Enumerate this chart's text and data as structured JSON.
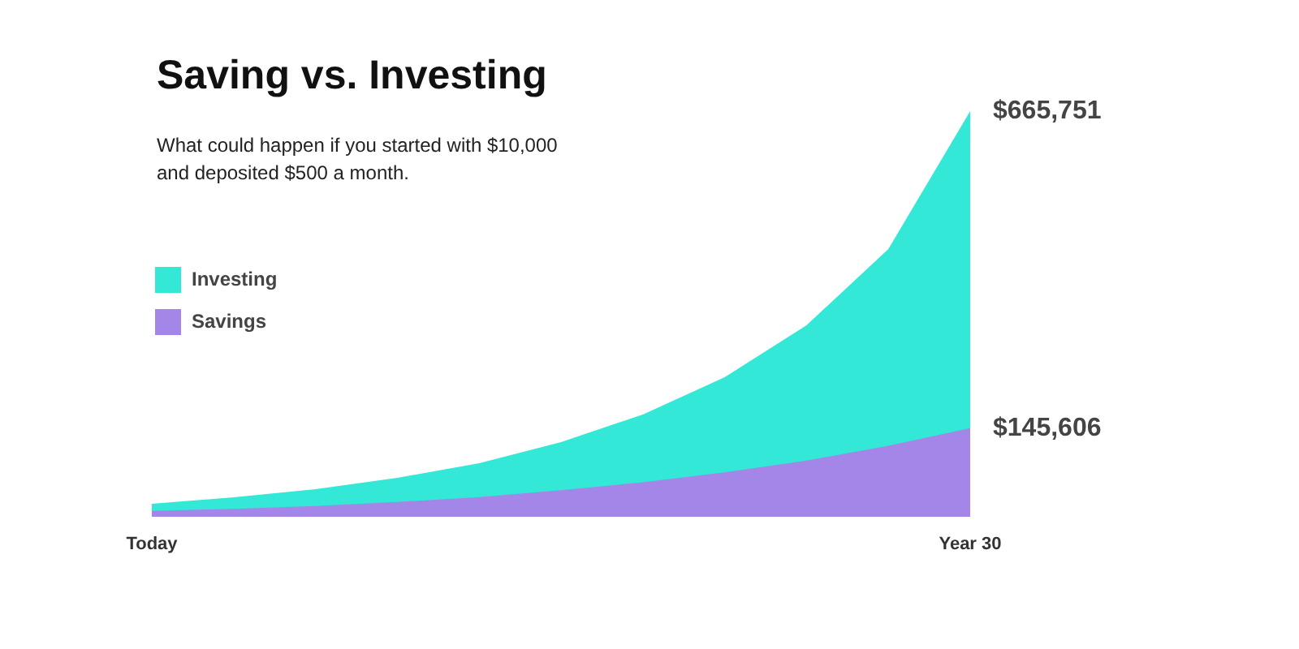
{
  "chart_data": {
    "type": "area",
    "title": "Saving vs. Investing",
    "subtitle": "What could happen if you started with $10,000\nand deposited $500 a month.",
    "categories": [
      "Today",
      null,
      null,
      null,
      null,
      null,
      null,
      null,
      null,
      null,
      "Year 30"
    ],
    "grid": false,
    "legend": "top left",
    "series": [
      {
        "name": "Investing",
        "color": "#33e8d6",
        "values": [
          21300,
          32000,
          45300,
          63900,
          87900,
          122500,
          167800,
          229000,
          314200,
          439400,
          665751
        ],
        "value_labels": [
          null,
          null,
          null,
          null,
          null,
          null,
          null,
          null,
          null,
          null,
          "$665,751"
        ]
      },
      {
        "name": "Savings",
        "color": "#a386e8",
        "values": [
          9700,
          12900,
          17800,
          24300,
          32400,
          43700,
          56600,
          72800,
          92200,
          116500,
          145606
        ],
        "value_labels": [
          null,
          null,
          null,
          null,
          null,
          null,
          null,
          null,
          null,
          null,
          "$145,606"
        ]
      }
    ]
  }
}
